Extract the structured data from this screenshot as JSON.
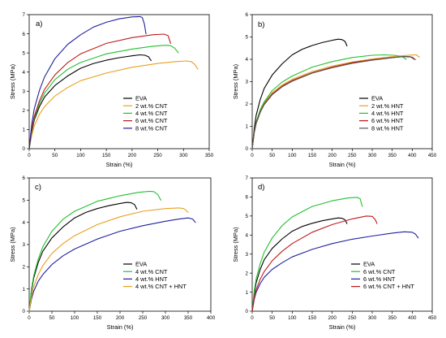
{
  "chart_data": [
    {
      "type": "line",
      "panel_label": "a)",
      "xlabel": "Strain (%)",
      "ylabel": "Stress (MPa)",
      "xlim": [
        0,
        350
      ],
      "ylim": [
        0,
        7
      ],
      "xticks": [
        0,
        50,
        100,
        150,
        200,
        250,
        300,
        350
      ],
      "yticks": [
        0,
        1,
        2,
        3,
        4,
        5,
        6,
        7
      ],
      "legend_position": "bottom-right",
      "series": [
        {
          "name": "EVA",
          "color": "#000000",
          "x": [
            0,
            5,
            10,
            20,
            30,
            50,
            75,
            100,
            125,
            150,
            175,
            200,
            215,
            225,
            232,
            237
          ],
          "y": [
            0,
            0.9,
            1.5,
            2.2,
            2.7,
            3.3,
            3.8,
            4.2,
            4.45,
            4.62,
            4.75,
            4.85,
            4.9,
            4.88,
            4.8,
            4.6
          ]
        },
        {
          "name": "2 wt.% CNT",
          "color": "#e8a020",
          "x": [
            0,
            5,
            10,
            20,
            30,
            50,
            75,
            100,
            150,
            200,
            250,
            285,
            305,
            315,
            322,
            328
          ],
          "y": [
            0,
            0.7,
            1.2,
            1.8,
            2.2,
            2.75,
            3.2,
            3.55,
            3.95,
            4.25,
            4.45,
            4.55,
            4.58,
            4.55,
            4.4,
            4.15
          ]
        },
        {
          "name": "4 wt.% CNT",
          "color": "#22c030",
          "x": [
            0,
            5,
            10,
            20,
            30,
            50,
            75,
            100,
            150,
            200,
            240,
            265,
            275,
            283,
            290
          ],
          "y": [
            0,
            1.0,
            1.6,
            2.35,
            2.9,
            3.6,
            4.15,
            4.5,
            4.95,
            5.2,
            5.35,
            5.4,
            5.38,
            5.25,
            5.0
          ]
        },
        {
          "name": "6 wt.% CNT",
          "color": "#c01818",
          "x": [
            0,
            5,
            10,
            20,
            30,
            50,
            75,
            100,
            150,
            200,
            240,
            262,
            270,
            275
          ],
          "y": [
            0,
            1.05,
            1.7,
            2.5,
            3.1,
            3.85,
            4.5,
            4.95,
            5.5,
            5.8,
            5.95,
            5.98,
            5.9,
            5.5
          ]
        },
        {
          "name": "8 wt.% CNT",
          "color": "#2020a0",
          "x": [
            0,
            5,
            10,
            20,
            30,
            50,
            75,
            100,
            125,
            150,
            175,
            200,
            215,
            220,
            224,
            227
          ],
          "y": [
            0,
            1.3,
            2.1,
            3.05,
            3.75,
            4.7,
            5.45,
            5.95,
            6.35,
            6.6,
            6.78,
            6.88,
            6.9,
            6.85,
            6.5,
            6.0
          ]
        }
      ]
    },
    {
      "type": "line",
      "panel_label": "b)",
      "xlabel": "Strain (%)",
      "ylabel": "Stress (MPa)",
      "xlim": [
        0,
        450
      ],
      "ylim": [
        0,
        6
      ],
      "xticks": [
        0,
        50,
        100,
        150,
        200,
        250,
        300,
        350,
        400,
        450
      ],
      "yticks": [
        0,
        1,
        2,
        3,
        4,
        5,
        6
      ],
      "legend_position": "bottom-right",
      "series": [
        {
          "name": "EVA",
          "color": "#000000",
          "x": [
            0,
            5,
            10,
            20,
            30,
            50,
            75,
            100,
            125,
            150,
            175,
            200,
            215,
            225,
            232,
            237
          ],
          "y": [
            0,
            0.9,
            1.5,
            2.2,
            2.7,
            3.3,
            3.8,
            4.2,
            4.45,
            4.62,
            4.75,
            4.85,
            4.9,
            4.88,
            4.8,
            4.6
          ]
        },
        {
          "name": "2 wt.% HNT",
          "color": "#e8a020",
          "x": [
            0,
            5,
            10,
            20,
            30,
            50,
            75,
            100,
            150,
            200,
            250,
            300,
            350,
            390,
            410,
            418
          ],
          "y": [
            0,
            0.75,
            1.2,
            1.7,
            2.05,
            2.5,
            2.85,
            3.1,
            3.45,
            3.7,
            3.88,
            4.02,
            4.12,
            4.18,
            4.2,
            4.1
          ]
        },
        {
          "name": "4 wt.% HNT",
          "color": "#22c030",
          "x": [
            0,
            5,
            10,
            20,
            30,
            50,
            75,
            100,
            150,
            200,
            250,
            300,
            330,
            355,
            375,
            385
          ],
          "y": [
            0,
            0.75,
            1.2,
            1.75,
            2.1,
            2.6,
            2.98,
            3.25,
            3.65,
            3.9,
            4.08,
            4.18,
            4.2,
            4.18,
            4.12,
            4.0
          ]
        },
        {
          "name": "6 wt.% HNT",
          "color": "#c01818",
          "x": [
            0,
            5,
            10,
            20,
            30,
            50,
            75,
            100,
            150,
            200,
            250,
            300,
            350,
            380,
            400,
            408
          ],
          "y": [
            0,
            0.72,
            1.15,
            1.65,
            2.0,
            2.45,
            2.8,
            3.05,
            3.4,
            3.65,
            3.85,
            3.98,
            4.08,
            4.12,
            4.1,
            3.98
          ]
        },
        {
          "name": "8 wt.% HNT",
          "color": "#555555",
          "x": [
            0,
            5,
            10,
            20,
            30,
            50,
            75,
            100,
            150,
            200,
            250,
            300,
            350,
            380,
            395,
            405
          ],
          "y": [
            0,
            0.7,
            1.12,
            1.62,
            1.97,
            2.42,
            2.77,
            3.02,
            3.38,
            3.62,
            3.82,
            3.96,
            4.07,
            4.13,
            4.12,
            4.0
          ]
        }
      ]
    },
    {
      "type": "line",
      "panel_label": "c)",
      "xlabel": "Strain (%)",
      "ylabel": "Stress (MPa)",
      "xlim": [
        0,
        400
      ],
      "ylim": [
        0,
        6
      ],
      "xticks": [
        0,
        50,
        100,
        150,
        200,
        250,
        300,
        350,
        400
      ],
      "yticks": [
        0,
        1,
        2,
        3,
        4,
        5,
        6
      ],
      "legend_position": "bottom-right",
      "series": [
        {
          "name": "EVA",
          "color": "#000000",
          "x": [
            0,
            5,
            10,
            20,
            30,
            50,
            75,
            100,
            125,
            150,
            175,
            200,
            215,
            225,
            232,
            237
          ],
          "y": [
            0,
            0.9,
            1.5,
            2.2,
            2.7,
            3.3,
            3.8,
            4.2,
            4.45,
            4.62,
            4.75,
            4.85,
            4.9,
            4.88,
            4.8,
            4.6
          ]
        },
        {
          "name": "4 wt.% CNT",
          "color": "#22c030",
          "x": [
            0,
            5,
            10,
            20,
            30,
            50,
            75,
            100,
            150,
            200,
            240,
            265,
            275,
            283,
            290
          ],
          "y": [
            0,
            1.0,
            1.6,
            2.35,
            2.9,
            3.6,
            4.15,
            4.5,
            4.95,
            5.2,
            5.35,
            5.4,
            5.38,
            5.25,
            5.0
          ]
        },
        {
          "name": "4 wt.% HNT",
          "color": "#2020a0",
          "x": [
            0,
            5,
            10,
            20,
            30,
            50,
            75,
            100,
            150,
            200,
            250,
            300,
            330,
            350,
            360,
            366
          ],
          "y": [
            0,
            0.55,
            0.9,
            1.35,
            1.65,
            2.1,
            2.5,
            2.8,
            3.25,
            3.6,
            3.85,
            4.05,
            4.15,
            4.2,
            4.15,
            4.0
          ]
        },
        {
          "name": "4 wt.% CNT + HNT",
          "color": "#e8a020",
          "x": [
            0,
            5,
            10,
            20,
            30,
            50,
            75,
            100,
            150,
            200,
            250,
            300,
            330,
            340,
            345,
            350
          ],
          "y": [
            0,
            0.65,
            1.1,
            1.65,
            2.05,
            2.6,
            3.05,
            3.4,
            3.9,
            4.25,
            4.5,
            4.62,
            4.65,
            4.62,
            4.55,
            4.45
          ]
        }
      ]
    },
    {
      "type": "line",
      "panel_label": "d)",
      "xlabel": "Strain (%)",
      "ylabel": "Stress (MPa)",
      "xlim": [
        0,
        450
      ],
      "ylim": [
        0,
        7
      ],
      "xticks": [
        0,
        50,
        100,
        150,
        200,
        250,
        300,
        350,
        400,
        450
      ],
      "yticks": [
        0,
        1,
        2,
        3,
        4,
        5,
        6,
        7
      ],
      "legend_position": "bottom-right",
      "series": [
        {
          "name": "EVA",
          "color": "#000000",
          "x": [
            0,
            5,
            10,
            20,
            30,
            50,
            75,
            100,
            125,
            150,
            175,
            200,
            215,
            225,
            232,
            237
          ],
          "y": [
            0,
            0.9,
            1.5,
            2.2,
            2.7,
            3.3,
            3.8,
            4.2,
            4.45,
            4.62,
            4.75,
            4.85,
            4.9,
            4.88,
            4.8,
            4.6
          ]
        },
        {
          "name": "6 wt.% CNT",
          "color": "#22c030",
          "x": [
            0,
            5,
            10,
            20,
            30,
            50,
            75,
            100,
            150,
            200,
            240,
            262,
            270,
            275
          ],
          "y": [
            0,
            1.05,
            1.7,
            2.5,
            3.1,
            3.85,
            4.5,
            4.95,
            5.5,
            5.8,
            5.95,
            5.98,
            5.9,
            5.5
          ]
        },
        {
          "name": "6 wt.% HNT",
          "color": "#2020a0",
          "x": [
            0,
            5,
            10,
            20,
            30,
            50,
            75,
            100,
            150,
            200,
            250,
            300,
            350,
            380,
            400,
            408,
            415
          ],
          "y": [
            0,
            0.62,
            1.0,
            1.45,
            1.78,
            2.2,
            2.55,
            2.85,
            3.25,
            3.55,
            3.78,
            3.95,
            4.1,
            4.17,
            4.15,
            4.05,
            3.85
          ]
        },
        {
          "name": "6 wt.% CNT + HNT",
          "color": "#c01818",
          "x": [
            0,
            5,
            10,
            20,
            30,
            50,
            75,
            100,
            150,
            200,
            250,
            285,
            300,
            308,
            312
          ],
          "y": [
            0,
            0.68,
            1.12,
            1.68,
            2.08,
            2.65,
            3.15,
            3.55,
            4.15,
            4.55,
            4.85,
            5.0,
            4.98,
            4.8,
            4.6
          ]
        }
      ]
    }
  ]
}
